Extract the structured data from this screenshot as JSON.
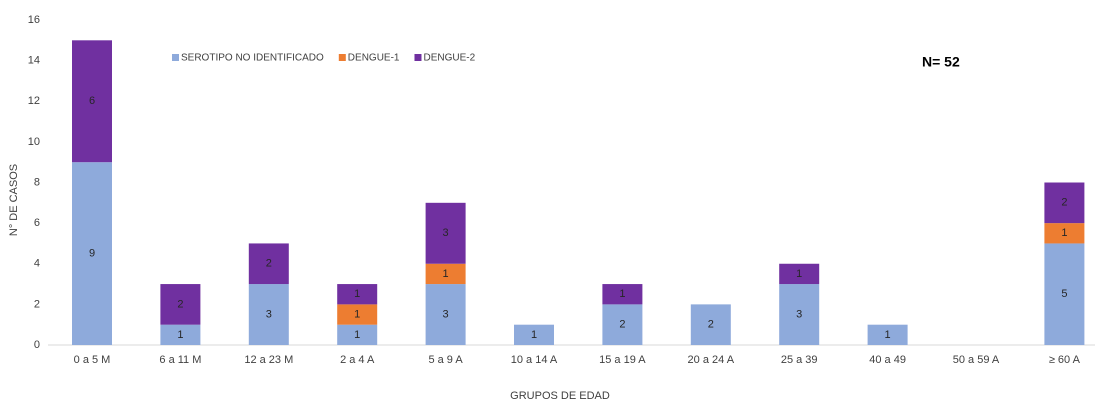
{
  "chart_data": {
    "type": "stacked_bar",
    "annotation": "N= 52",
    "x_label": "GRUPOS DE EDAD",
    "y_label": "N° DE CASOS",
    "categories": [
      "0 a 5 M",
      "6 a 11 M",
      "12 a 23 M",
      "2 a 4 A",
      "5 a 9 A",
      "10 a 14 A",
      "15 a 19 A",
      "20 a 24 A",
      "25 a 39",
      "40 a 49",
      "50 a 59 A",
      "≥ 60 A"
    ],
    "series": [
      {
        "name": "SEROTIPO NO IDENTIFICADO",
        "color": "#8eaadb",
        "values": [
          9,
          1,
          3,
          1,
          3,
          1,
          2,
          2,
          3,
          1,
          null,
          5
        ]
      },
      {
        "name": "DENGUE-1",
        "color": "#ed7d31",
        "values": [
          null,
          null,
          null,
          1,
          1,
          null,
          null,
          null,
          null,
          null,
          null,
          1
        ]
      },
      {
        "name": "DENGUE-2",
        "color": "#7030a0",
        "values": [
          6,
          2,
          2,
          1,
          3,
          null,
          1,
          null,
          1,
          null,
          null,
          2
        ]
      }
    ],
    "ylim": [
      0,
      16
    ],
    "yticks": [
      0,
      2,
      4,
      6,
      8,
      10,
      12,
      14,
      16
    ],
    "grid": false,
    "legend": "top"
  }
}
